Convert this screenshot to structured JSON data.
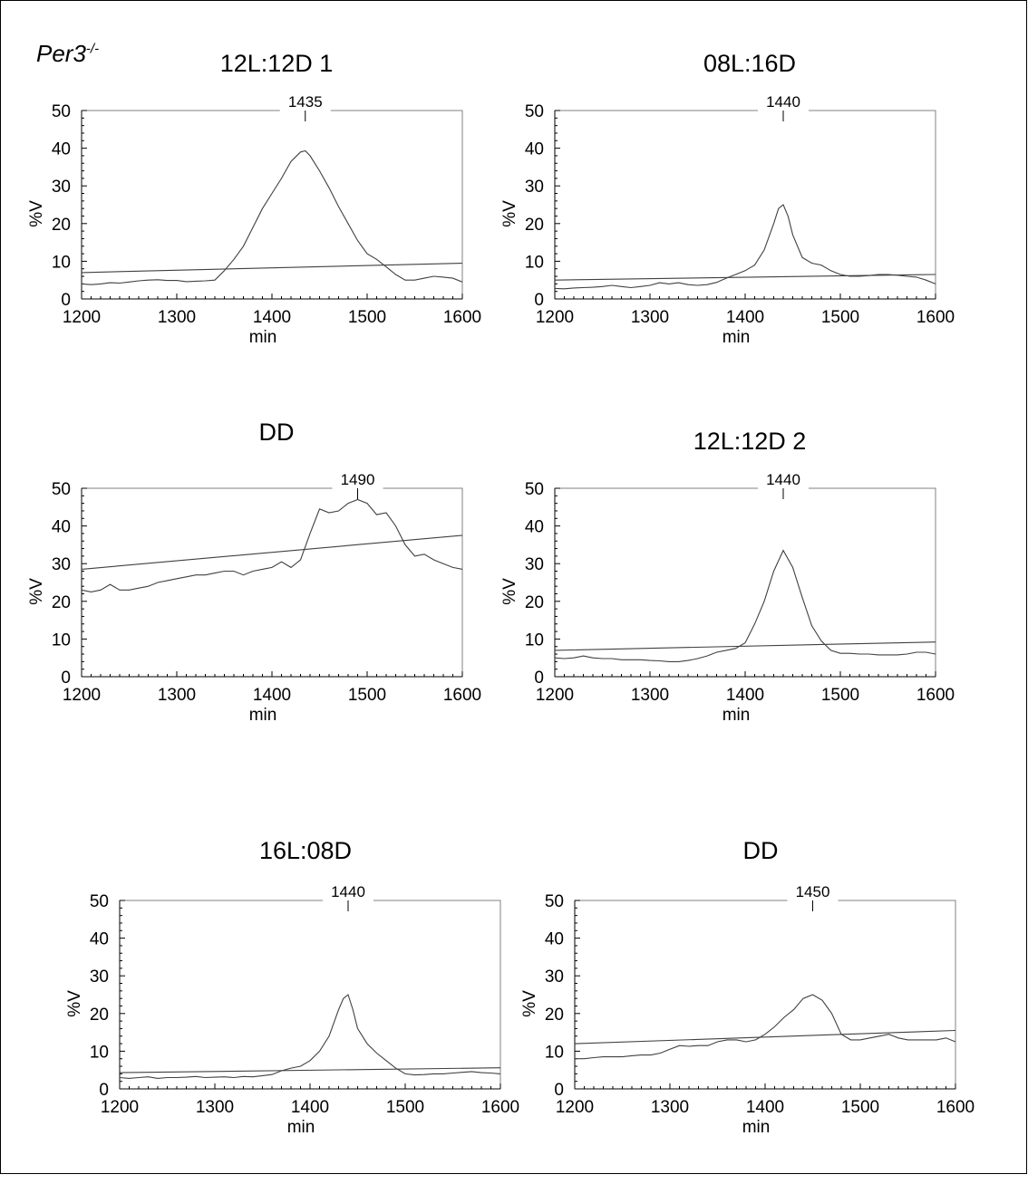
{
  "genotype": {
    "name": "Per3",
    "superscript": "-/-"
  },
  "chart_data": [
    {
      "type": "line",
      "title": "12L:12D 1",
      "xlabel": "min",
      "ylabel": "%V",
      "xlim": [
        1200,
        1600
      ],
      "ylim": [
        0,
        50
      ],
      "xticks": [
        1200,
        1300,
        1400,
        1500,
        1600
      ],
      "yticks": [
        0,
        10,
        20,
        30,
        40,
        50
      ],
      "peak_label": "1435",
      "peak_x": 1435,
      "series": [
        {
          "x": [
            1200,
            1210,
            1220,
            1230,
            1240,
            1250,
            1260,
            1270,
            1280,
            1290,
            1300,
            1310,
            1320,
            1330,
            1340,
            1350,
            1360,
            1370,
            1380,
            1390,
            1400,
            1410,
            1420,
            1430,
            1435,
            1440,
            1450,
            1460,
            1470,
            1480,
            1490,
            1500,
            1510,
            1520,
            1530,
            1540,
            1550,
            1560,
            1570,
            1580,
            1590,
            1600
          ],
          "y": [
            4,
            3.8,
            4,
            4.3,
            4.2,
            4.5,
            4.8,
            5,
            5.1,
            4.9,
            4.9,
            4.6,
            4.7,
            4.8,
            5,
            7.5,
            10.5,
            14,
            19,
            24,
            28,
            32,
            36.5,
            39,
            39.3,
            38,
            34,
            29.5,
            24.5,
            20,
            15.5,
            12,
            10.5,
            8.5,
            6.5,
            5,
            5,
            5.5,
            6,
            5.8,
            5.5,
            4.5
          ]
        },
        {
          "x": [
            1200,
            1600
          ],
          "y": [
            7,
            9.5
          ]
        }
      ]
    },
    {
      "type": "line",
      "title": "08L:16D",
      "xlabel": "min",
      "ylabel": "%V",
      "xlim": [
        1200,
        1600
      ],
      "ylim": [
        0,
        50
      ],
      "xticks": [
        1200,
        1300,
        1400,
        1500,
        1600
      ],
      "yticks": [
        0,
        10,
        20,
        30,
        40,
        50
      ],
      "peak_label": "1440",
      "peak_x": 1440,
      "series": [
        {
          "x": [
            1200,
            1210,
            1220,
            1230,
            1240,
            1250,
            1260,
            1270,
            1280,
            1290,
            1300,
            1310,
            1320,
            1330,
            1340,
            1350,
            1360,
            1370,
            1380,
            1390,
            1400,
            1410,
            1420,
            1430,
            1435,
            1440,
            1445,
            1450,
            1460,
            1470,
            1480,
            1490,
            1500,
            1510,
            1520,
            1530,
            1540,
            1550,
            1560,
            1570,
            1580,
            1590,
            1600
          ],
          "y": [
            2.8,
            2.7,
            2.9,
            3,
            3.1,
            3.3,
            3.6,
            3.3,
            3,
            3.3,
            3.6,
            4.3,
            4,
            4.3,
            3.8,
            3.6,
            3.8,
            4.4,
            5.5,
            6.5,
            7.5,
            9,
            13,
            20,
            24,
            25,
            22,
            17,
            11,
            9.5,
            9,
            7.5,
            6.5,
            6,
            6,
            6.2,
            6.5,
            6.5,
            6.3,
            6,
            5.8,
            5,
            4
          ]
        },
        {
          "x": [
            1200,
            1600
          ],
          "y": [
            5,
            6.5
          ]
        }
      ]
    },
    {
      "type": "line",
      "title": "DD",
      "xlabel": "min",
      "ylabel": "%V",
      "xlim": [
        1200,
        1600
      ],
      "ylim": [
        0,
        50
      ],
      "xticks": [
        1200,
        1300,
        1400,
        1500,
        1600
      ],
      "yticks": [
        0,
        10,
        20,
        30,
        40,
        50
      ],
      "peak_label": "1490",
      "peak_x": 1490,
      "series": [
        {
          "x": [
            1200,
            1210,
            1220,
            1230,
            1240,
            1250,
            1260,
            1270,
            1280,
            1290,
            1300,
            1310,
            1320,
            1330,
            1340,
            1350,
            1360,
            1370,
            1380,
            1390,
            1400,
            1410,
            1420,
            1430,
            1440,
            1450,
            1460,
            1470,
            1480,
            1490,
            1500,
            1510,
            1520,
            1530,
            1540,
            1550,
            1560,
            1570,
            1580,
            1590,
            1600
          ],
          "y": [
            23,
            22.5,
            23,
            24.5,
            23,
            23,
            23.5,
            24,
            25,
            25.5,
            26,
            26.5,
            27,
            27,
            27.5,
            28,
            28,
            27,
            28,
            28.5,
            29,
            30.5,
            29,
            31,
            38,
            44.5,
            43.5,
            44,
            46,
            47,
            46,
            43,
            43.5,
            40,
            35,
            32,
            32.5,
            31,
            30,
            29,
            28.5
          ]
        },
        {
          "x": [
            1200,
            1600
          ],
          "y": [
            28.5,
            37.5
          ]
        }
      ]
    },
    {
      "type": "line",
      "title": "12L:12D 2",
      "xlabel": "min",
      "ylabel": "%V",
      "xlim": [
        1200,
        1600
      ],
      "ylim": [
        0,
        50
      ],
      "xticks": [
        1200,
        1300,
        1400,
        1500,
        1600
      ],
      "yticks": [
        0,
        10,
        20,
        30,
        40,
        50
      ],
      "peak_label": "1440",
      "peak_x": 1440,
      "series": [
        {
          "x": [
            1200,
            1210,
            1220,
            1230,
            1240,
            1250,
            1260,
            1270,
            1280,
            1290,
            1300,
            1310,
            1320,
            1330,
            1340,
            1350,
            1360,
            1370,
            1380,
            1390,
            1400,
            1410,
            1420,
            1430,
            1440,
            1450,
            1460,
            1470,
            1480,
            1490,
            1500,
            1510,
            1520,
            1530,
            1540,
            1550,
            1560,
            1570,
            1580,
            1590,
            1600
          ],
          "y": [
            5,
            4.8,
            5,
            5.5,
            5,
            4.8,
            4.8,
            4.5,
            4.5,
            4.5,
            4.3,
            4.2,
            4,
            4,
            4.3,
            4.8,
            5.5,
            6.5,
            7,
            7.5,
            9,
            14,
            20,
            28,
            33.5,
            29,
            21,
            13.5,
            9.5,
            7,
            6.2,
            6.2,
            6,
            6,
            5.8,
            5.8,
            5.8,
            6,
            6.5,
            6.5,
            6
          ]
        },
        {
          "x": [
            1200,
            1600
          ],
          "y": [
            7,
            9.2
          ]
        }
      ]
    },
    {
      "type": "line",
      "title": "16L:08D",
      "xlabel": "min",
      "ylabel": "%V",
      "xlim": [
        1200,
        1600
      ],
      "ylim": [
        0,
        50
      ],
      "xticks": [
        1200,
        1300,
        1400,
        1500,
        1600
      ],
      "yticks": [
        0,
        10,
        20,
        30,
        40,
        50
      ],
      "peak_label": "1440",
      "peak_x": 1440,
      "series": [
        {
          "x": [
            1200,
            1210,
            1220,
            1230,
            1240,
            1250,
            1260,
            1270,
            1280,
            1290,
            1300,
            1310,
            1320,
            1330,
            1340,
            1350,
            1360,
            1370,
            1380,
            1390,
            1400,
            1410,
            1420,
            1430,
            1435,
            1440,
            1445,
            1450,
            1460,
            1470,
            1480,
            1490,
            1500,
            1510,
            1520,
            1530,
            1540,
            1550,
            1560,
            1570,
            1580,
            1590,
            1600
          ],
          "y": [
            3,
            2.8,
            3,
            3.2,
            2.8,
            3,
            3,
            3.1,
            3.3,
            3,
            3.1,
            3.2,
            3,
            3.3,
            3.2,
            3.5,
            3.8,
            4.8,
            5.5,
            6,
            7.5,
            10,
            14,
            21,
            24,
            25,
            21,
            16,
            12,
            9.5,
            7.5,
            5.5,
            4,
            3.7,
            3.8,
            4,
            4,
            4.2,
            4.4,
            4.6,
            4.3,
            4.2,
            4
          ]
        },
        {
          "x": [
            1200,
            1600
          ],
          "y": [
            4.3,
            5.6
          ]
        }
      ]
    },
    {
      "type": "line",
      "title": "DD",
      "xlabel": "min",
      "ylabel": "%V",
      "xlim": [
        1200,
        1600
      ],
      "ylim": [
        0,
        50
      ],
      "xticks": [
        1200,
        1300,
        1400,
        1500,
        1600
      ],
      "yticks": [
        0,
        10,
        20,
        30,
        40,
        50
      ],
      "peak_label": "1450",
      "peak_x": 1450,
      "series": [
        {
          "x": [
            1200,
            1210,
            1220,
            1230,
            1240,
            1250,
            1260,
            1270,
            1280,
            1290,
            1300,
            1310,
            1320,
            1330,
            1340,
            1350,
            1360,
            1370,
            1380,
            1390,
            1400,
            1410,
            1420,
            1430,
            1440,
            1450,
            1460,
            1470,
            1480,
            1490,
            1500,
            1510,
            1520,
            1530,
            1540,
            1550,
            1560,
            1570,
            1580,
            1590,
            1600
          ],
          "y": [
            8,
            8,
            8.3,
            8.5,
            8.5,
            8.5,
            8.8,
            9,
            9,
            9.5,
            10.5,
            11.5,
            11.3,
            11.5,
            11.5,
            12.5,
            13,
            13,
            12.5,
            13,
            14.5,
            16.5,
            19,
            21,
            24,
            25,
            23.5,
            20,
            14.5,
            13,
            13,
            13.5,
            14,
            14.5,
            13.5,
            13,
            13,
            13,
            13,
            13.5,
            12.5
          ]
        },
        {
          "x": [
            1200,
            1600
          ],
          "y": [
            12,
            15.5
          ]
        }
      ]
    }
  ]
}
